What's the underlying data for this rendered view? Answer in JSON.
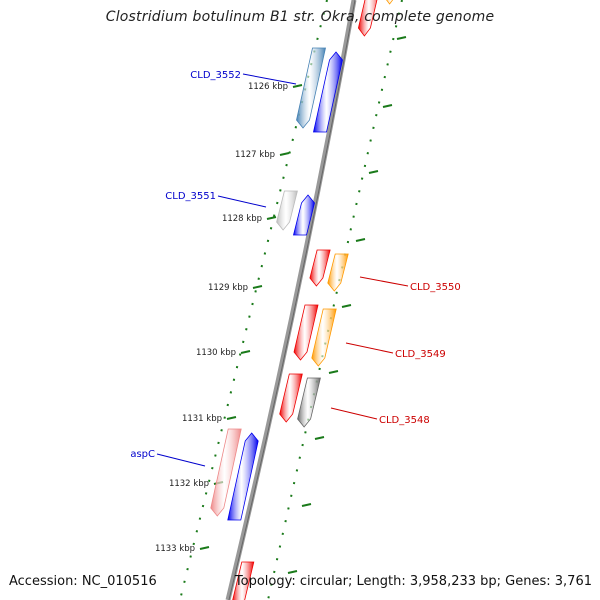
{
  "title": "Clostridium botulinum B1 str. Okra, complete genome",
  "footer": {
    "accession": "Accession: NC_010516",
    "topology": "Topology: circular; Length: 3,958,233 bp; Genes: 3,761"
  },
  "colors": {
    "backbone": "#888888",
    "tick": "#1a7a1a",
    "forward_label": "#0000cc",
    "reverse_label": "#cc0000",
    "red": "#ee0000",
    "orange": "#ff9900",
    "blue": "#0000ee",
    "steel_blue": "#4682b4",
    "light_gray": "#bbbbbb",
    "dark_gray": "#666666",
    "light_red": "#ee8888"
  },
  "ruler": [
    {
      "label": "1126 kbp",
      "kbp": 1126
    },
    {
      "label": "1127 kbp",
      "kbp": 1127
    },
    {
      "label": "1128 kbp",
      "kbp": 1128
    },
    {
      "label": "1129 kbp",
      "kbp": 1129
    },
    {
      "label": "1130 kbp",
      "kbp": 1130
    },
    {
      "label": "1131 kbp",
      "kbp": 1131
    },
    {
      "label": "1132 kbp",
      "kbp": 1132
    },
    {
      "label": "1133 kbp",
      "kbp": 1133
    }
  ],
  "gene_labels": [
    {
      "name": "CLD_3552",
      "strand": "forward"
    },
    {
      "name": "CLD_3551",
      "strand": "forward"
    },
    {
      "name": "CLD_3550",
      "strand": "reverse"
    },
    {
      "name": "CLD_3549",
      "strand": "reverse"
    },
    {
      "name": "CLD_3548",
      "strand": "reverse"
    },
    {
      "name": "aspC",
      "strand": "forward"
    }
  ]
}
